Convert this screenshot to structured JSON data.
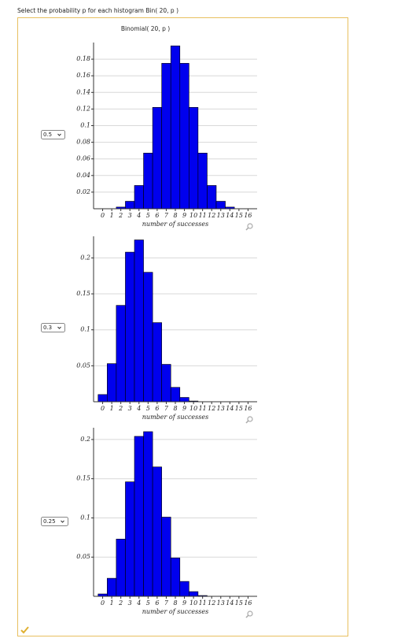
{
  "prompt": "Select the probability p for each histogram Bin( 20, p )",
  "title": "Binomial( 20, p )",
  "selects": [
    "0.5",
    "0.3",
    "0.25"
  ],
  "chart_data": [
    {
      "type": "bar",
      "color": "#0000ee",
      "xlabel": "number of successes",
      "x": [
        0,
        1,
        2,
        3,
        4,
        5,
        6,
        7,
        8,
        9,
        10,
        11,
        12,
        13,
        14,
        15,
        16
      ],
      "values": [
        0,
        0,
        0.002,
        0.009,
        0.028,
        0.067,
        0.122,
        0.175,
        0.196,
        0.175,
        0.122,
        0.067,
        0.028,
        0.009,
        0.002,
        0,
        0
      ],
      "xlim": [
        -1,
        17
      ],
      "xticks": [
        0,
        1,
        2,
        3,
        4,
        5,
        6,
        7,
        8,
        9,
        10,
        11,
        12,
        13,
        14,
        15,
        16
      ],
      "ylim": [
        0,
        0.2
      ],
      "yticks": [
        0.02,
        0.04,
        0.06,
        0.08,
        0.1,
        0.12,
        0.14,
        0.16,
        0.18
      ],
      "grid": true
    },
    {
      "type": "bar",
      "color": "#0000ee",
      "xlabel": "number of successes",
      "x": [
        0,
        1,
        2,
        3,
        4,
        5,
        6,
        7,
        8,
        9,
        10,
        11,
        12,
        13,
        14,
        15,
        16
      ],
      "values": [
        0.01,
        0.053,
        0.134,
        0.208,
        0.225,
        0.18,
        0.11,
        0.052,
        0.02,
        0.006,
        0.001,
        0,
        0,
        0,
        0,
        0,
        0
      ],
      "xlim": [
        -1,
        17
      ],
      "xticks": [
        0,
        1,
        2,
        3,
        4,
        5,
        6,
        7,
        8,
        9,
        10,
        11,
        12,
        13,
        14,
        15,
        16
      ],
      "ylim": [
        0,
        0.23
      ],
      "yticks": [
        0.05,
        0.1,
        0.15,
        0.2
      ],
      "grid": true
    },
    {
      "type": "bar",
      "color": "#0000ee",
      "xlabel": "number of successes",
      "x": [
        0,
        1,
        2,
        3,
        4,
        5,
        6,
        7,
        8,
        9,
        10,
        11,
        12,
        13,
        14,
        15,
        16
      ],
      "values": [
        0.003,
        0.023,
        0.073,
        0.146,
        0.204,
        0.21,
        0.165,
        0.101,
        0.049,
        0.019,
        0.006,
        0.001,
        0,
        0,
        0,
        0,
        0
      ],
      "xlim": [
        -1,
        17
      ],
      "xticks": [
        0,
        1,
        2,
        3,
        4,
        5,
        6,
        7,
        8,
        9,
        10,
        11,
        12,
        13,
        14,
        15,
        16
      ],
      "ylim": [
        0,
        0.215
      ],
      "yticks": [
        0.05,
        0.1,
        0.15,
        0.2
      ],
      "grid": true
    }
  ]
}
